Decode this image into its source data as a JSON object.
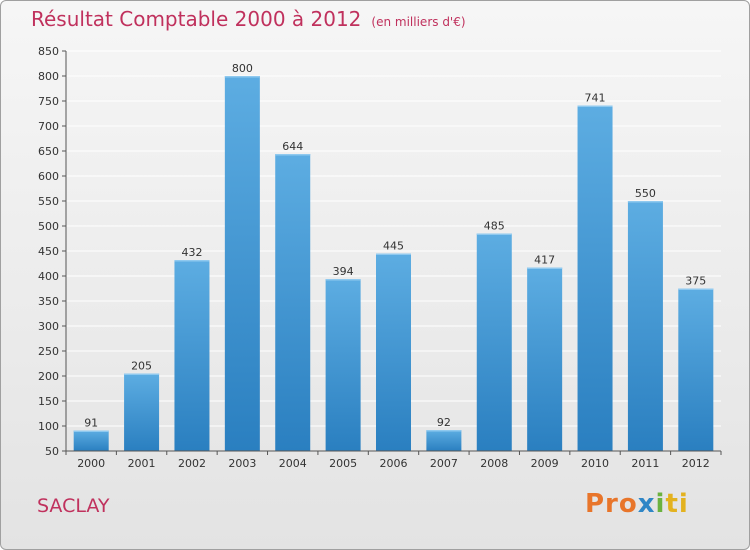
{
  "header": {
    "title": "Résultat Comptable 2000 à 2012",
    "unit": "(en milliers d'€)"
  },
  "footer": {
    "town": "SACLAY",
    "brand": {
      "p1": "Pro",
      "p2": "x",
      "p3": "i",
      "p4": "ti"
    }
  },
  "chart_data": {
    "type": "bar",
    "title": "Résultat Comptable 2000 à 2012 (en milliers d'€)",
    "xlabel": "",
    "ylabel": "",
    "categories": [
      "2000",
      "2001",
      "2002",
      "2003",
      "2004",
      "2005",
      "2006",
      "2007",
      "2008",
      "2009",
      "2010",
      "2011",
      "2012"
    ],
    "values": [
      91,
      205,
      432,
      800,
      644,
      394,
      445,
      92,
      485,
      417,
      741,
      550,
      375
    ],
    "ylim": [
      50,
      850
    ],
    "yticks": [
      50,
      100,
      150,
      200,
      250,
      300,
      350,
      400,
      450,
      500,
      550,
      600,
      650,
      700,
      750,
      800,
      850
    ],
    "grid": true,
    "colors": {
      "bar_top": "#5dade2",
      "bar_bottom": "#2a7fc0",
      "grid": "#ffffff"
    }
  }
}
